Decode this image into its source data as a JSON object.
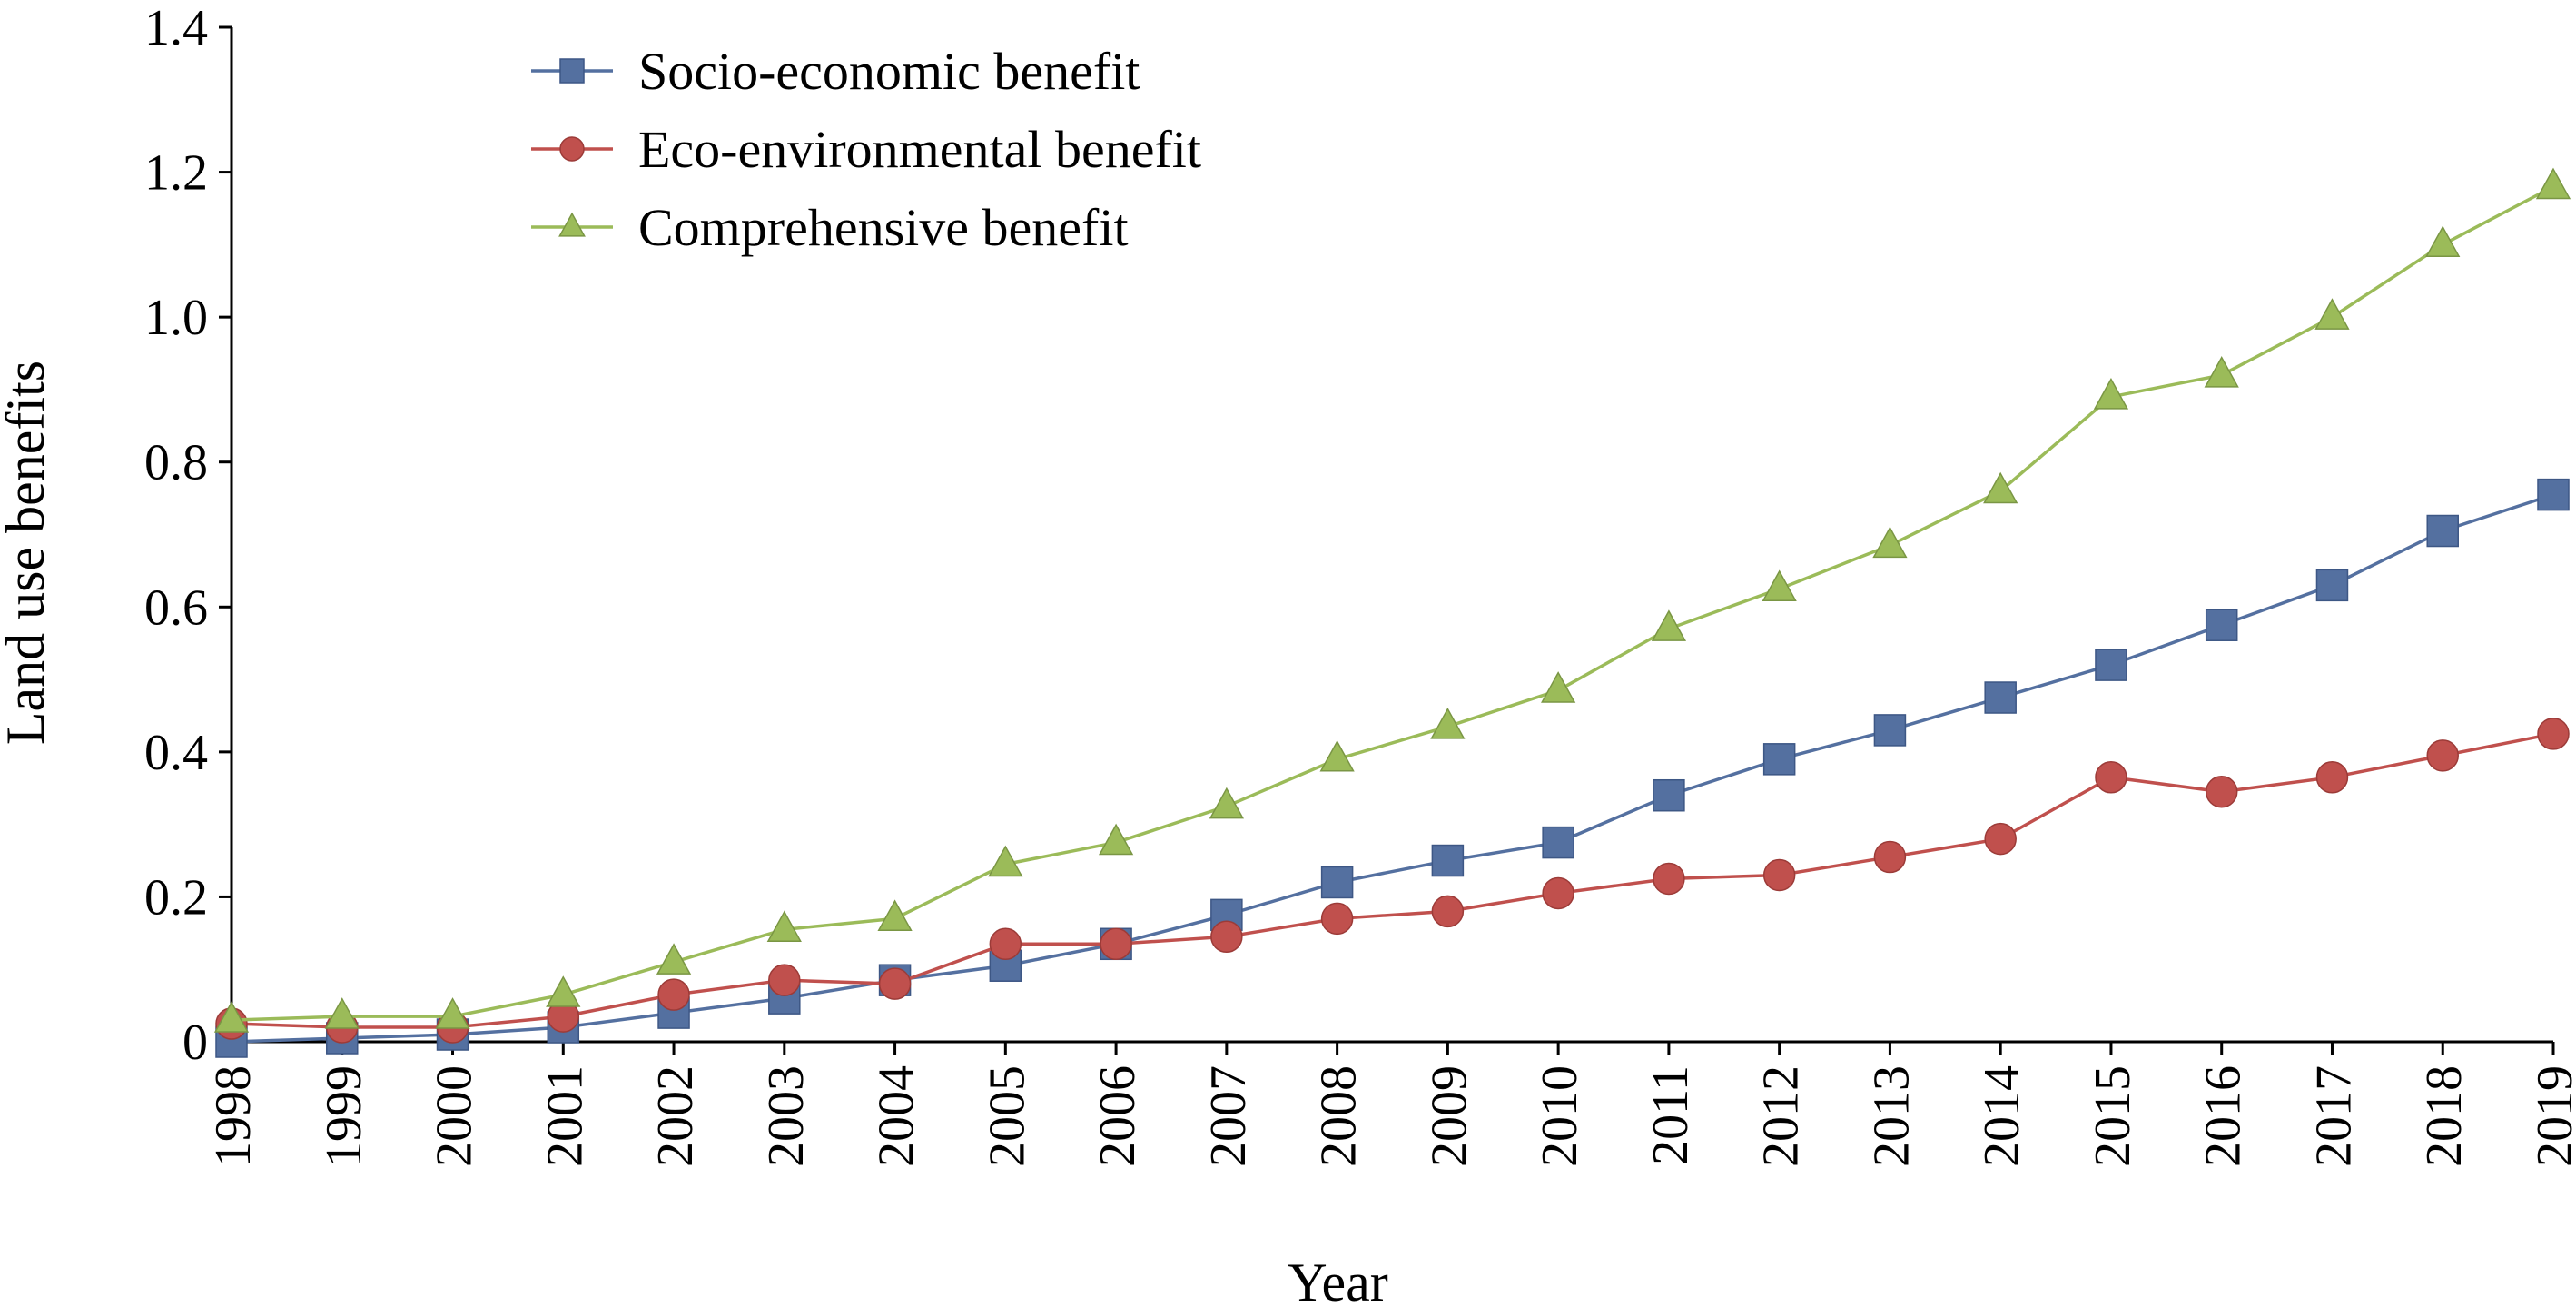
{
  "chart_data": {
    "type": "line",
    "title": "",
    "xlabel": "Year",
    "ylabel": "Land use benefits",
    "ylim": [
      0,
      1.4
    ],
    "yticks": [
      "0",
      "0.2",
      "0.4",
      "0.6",
      "0.8",
      "1.0",
      "1.2",
      "1.4"
    ],
    "grid": false,
    "legend_position": "top-left",
    "categories": [
      "1998",
      "1999",
      "2000",
      "2001",
      "2002",
      "2003",
      "2004",
      "2005",
      "2006",
      "2007",
      "2008",
      "2009",
      "2010",
      "2011",
      "2012",
      "2013",
      "2014",
      "2015",
      "2016",
      "2017",
      "2018",
      "2019"
    ],
    "series": [
      {
        "name": "Socio-economic benefit",
        "marker": "square",
        "color": "#5470A0",
        "values": [
          0.0,
          0.005,
          0.01,
          0.02,
          0.04,
          0.06,
          0.085,
          0.105,
          0.135,
          0.175,
          0.22,
          0.25,
          0.275,
          0.34,
          0.39,
          0.43,
          0.475,
          0.52,
          0.575,
          0.63,
          0.705,
          0.755
        ]
      },
      {
        "name": "Eco-environmental benefit",
        "marker": "circle",
        "color": "#C0504D",
        "values": [
          0.025,
          0.02,
          0.02,
          0.035,
          0.065,
          0.085,
          0.08,
          0.135,
          0.135,
          0.145,
          0.17,
          0.18,
          0.205,
          0.225,
          0.23,
          0.255,
          0.28,
          0.365,
          0.345,
          0.365,
          0.395,
          0.425
        ]
      },
      {
        "name": "Comprehensive benefit",
        "marker": "triangle",
        "color": "#9BBB59",
        "values": [
          0.03,
          0.035,
          0.035,
          0.065,
          0.11,
          0.155,
          0.17,
          0.245,
          0.275,
          0.325,
          0.39,
          0.435,
          0.485,
          0.57,
          0.625,
          0.685,
          0.76,
          0.89,
          0.92,
          1.0,
          1.1,
          1.18
        ]
      }
    ]
  }
}
